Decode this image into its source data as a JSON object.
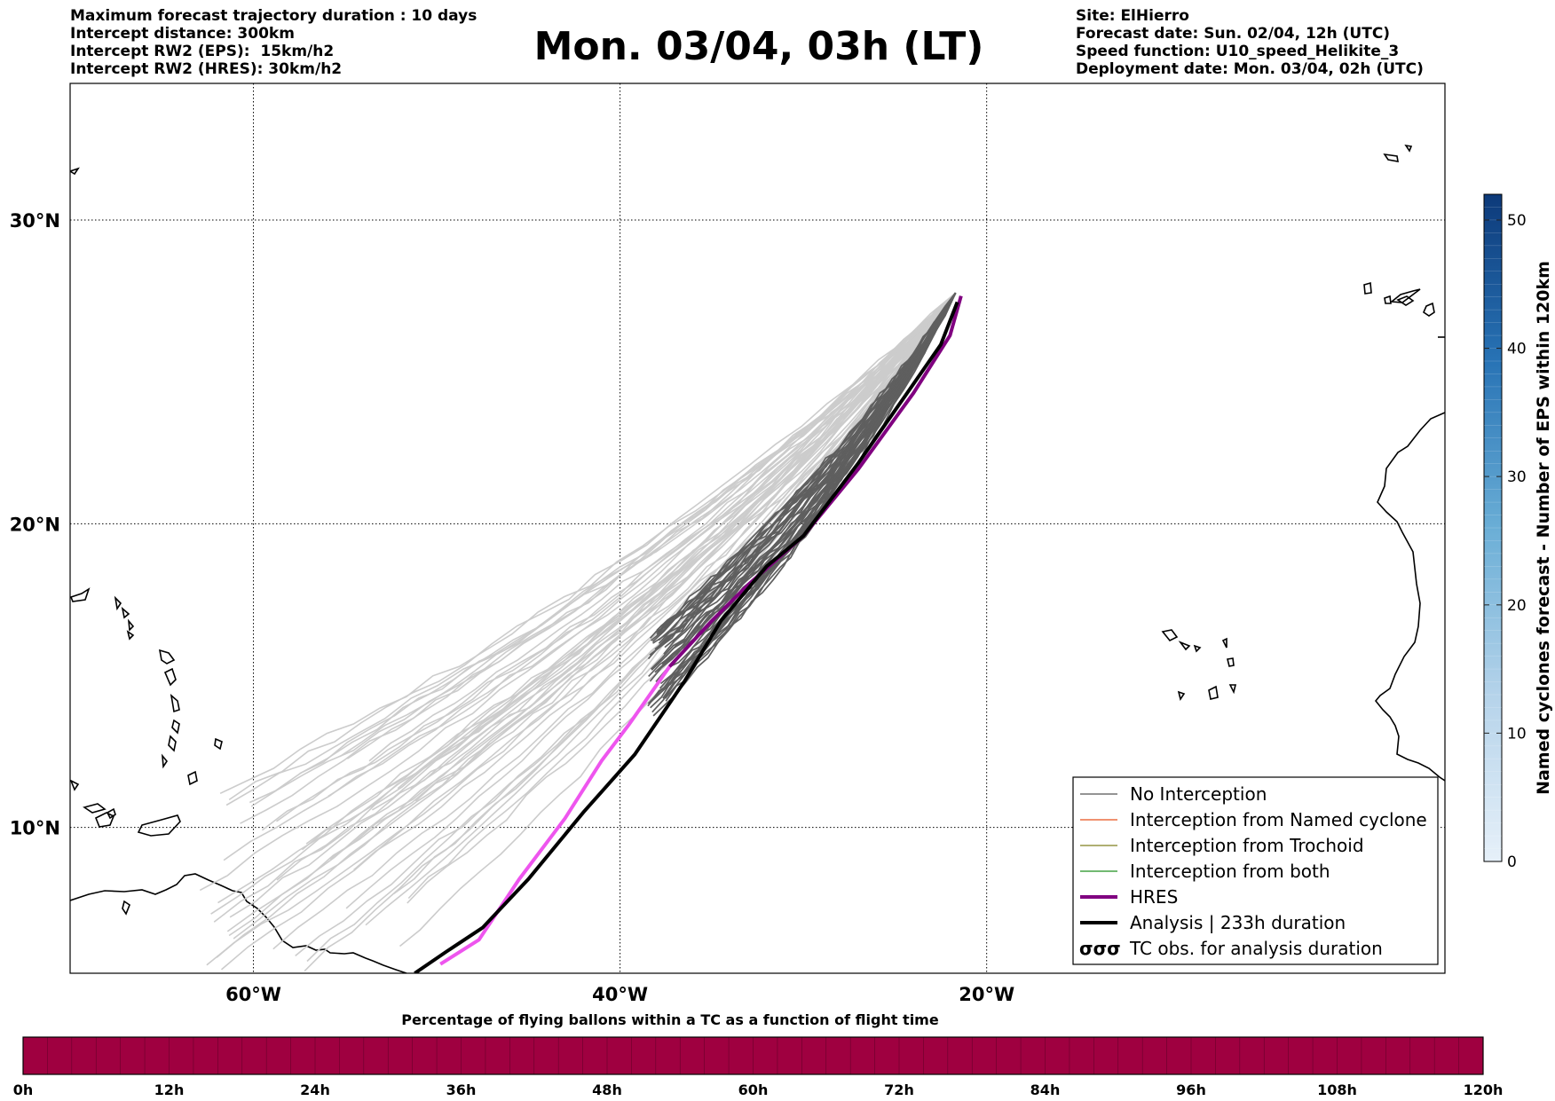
{
  "header": {
    "left_lines": [
      "Maximum forecast trajectory duration : 10 days",
      "Intercept distance: 300km",
      "Intercept RW2 (EPS):  15km/h2",
      "Intercept RW2 (HRES): 30km/h2"
    ],
    "title": "Mon. 03/04, 03h (LT)",
    "right_lines": [
      "Site: ElHierro",
      "Forecast date: Sun. 02/04, 12h (UTC)",
      "Speed function: U10_speed_Helikite_3",
      "Deployment date: Mon. 03/04, 02h (UTC)"
    ]
  },
  "map": {
    "lon_range": [
      -70,
      5
    ],
    "lat_range": [
      5.2,
      34.5
    ],
    "lon_ticks": [
      {
        "value": -60,
        "label": "60°W"
      },
      {
        "value": -40,
        "label": "40°W"
      },
      {
        "value": -20,
        "label": "20°W"
      }
    ],
    "lat_ticks": [
      {
        "value": 30,
        "label": "30°N"
      },
      {
        "value": 20,
        "label": "20°N"
      },
      {
        "value": 10,
        "label": "10°N"
      }
    ],
    "grid": true,
    "colors": {
      "no_interception_recent": "#5f5f5f",
      "no_interception_early": "#cccccc",
      "named_cyclone": "#e8501c",
      "trochoid": "#7f7f1f",
      "both": "#1f8f1f",
      "hres": "#800080",
      "hres_forecast": "#ee55ee",
      "analysis": "#000000"
    }
  },
  "chart_data": {
    "type": "line",
    "x_label": "",
    "y_label": "",
    "hres_track": [
      [
        -21.4,
        27.5
      ],
      [
        -22,
        26.2
      ],
      [
        -24,
        24.3
      ],
      [
        -27,
        21.8
      ],
      [
        -30,
        19.6
      ],
      [
        -33,
        18
      ],
      [
        -35,
        16.8
      ],
      [
        -37.3,
        15.3
      ],
      [
        -39.5,
        13.4
      ],
      [
        -41,
        12.2
      ],
      [
        -43,
        10.3
      ],
      [
        -45.5,
        8.3
      ],
      [
        -47.7,
        6.3
      ],
      [
        -49.8,
        5.5
      ]
    ],
    "hres_recent_until_lon": -37.3,
    "analysis_track": [
      [
        -21.6,
        27.3
      ],
      [
        -22.5,
        25.9
      ],
      [
        -24,
        24.6
      ],
      [
        -27,
        22
      ],
      [
        -30,
        19.6
      ],
      [
        -32,
        18.6
      ],
      [
        -34.5,
        16.8
      ],
      [
        -36.5,
        14.8
      ],
      [
        -39.2,
        12.4
      ],
      [
        -42,
        10.5
      ],
      [
        -45,
        8.3
      ],
      [
        -47.5,
        6.7
      ],
      [
        -49.5,
        5.9
      ],
      [
        -51.2,
        5.2
      ]
    ],
    "ensemble_origin": [
      -21.7,
      27.6
    ],
    "ensemble_recent_count": 40,
    "ensemble_early_count": 45,
    "ensemble_recent_end_lon": [
      -38.5,
      -37.5
    ],
    "ensemble_recent_end_lat": [
      13.5,
      16.5
    ],
    "ensemble_early_end_lon": [
      -63,
      -51
    ],
    "ensemble_early_end_lat": [
      5.2,
      12.8
    ]
  },
  "legend": {
    "items": [
      {
        "label": "No Interception",
        "style": "thin",
        "color": "#555555"
      },
      {
        "label": "Interception from Named cyclone",
        "style": "thin",
        "color": "#e8501c"
      },
      {
        "label": "Interception from Trochoid",
        "style": "thin",
        "color": "#7f7f1f"
      },
      {
        "label": "Interception from both",
        "style": "thin",
        "color": "#1f8f1f"
      },
      {
        "label": "HRES",
        "style": "thick",
        "color": "#800080"
      },
      {
        "label": "Analysis | 233h duration",
        "style": "thick",
        "color": "#000000"
      },
      {
        "label": "TC obs. for analysis duration",
        "style": "symbol",
        "color": "#000000"
      }
    ],
    "symbol": "σσσ"
  },
  "colorbar": {
    "title": "Named cyclones forecast - Number of EPS within 120km",
    "min": 0,
    "max": 52,
    "ticks": [
      "0",
      "10",
      "20",
      "30",
      "40",
      "50"
    ],
    "tick_values": [
      0,
      10,
      20,
      30,
      40,
      50
    ],
    "color_low": "#e6f0f9",
    "color_high": "#0d3a7a"
  },
  "flight_bar": {
    "title": "Percentage of flying ballons within a TC as a function of flight time",
    "color": "#9f0040",
    "ticks": [
      "0h",
      "12h",
      "24h",
      "36h",
      "48h",
      "60h",
      "72h",
      "84h",
      "96h",
      "108h",
      "120h"
    ],
    "divisions": 60
  }
}
